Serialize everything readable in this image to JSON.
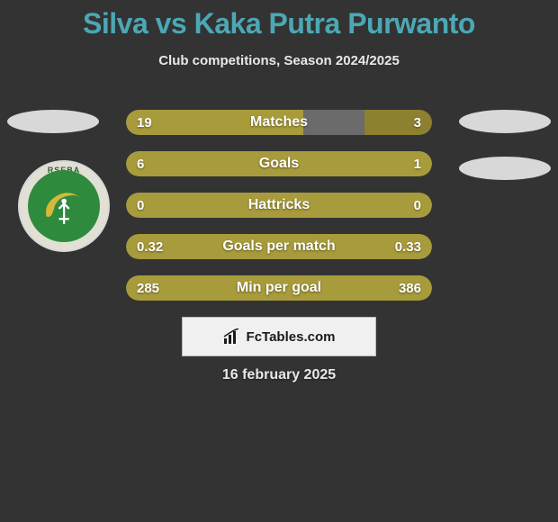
{
  "title": "Silva vs Kaka Putra Purwanto",
  "subtitle": "Club competitions, Season 2024/2025",
  "colors": {
    "accent_teal": "#4ba8b5",
    "bar_olive": "#a89b3b",
    "bar_olive_dark": "#8d8130",
    "bar_track": "#6b6b6b",
    "background": "#333333",
    "text_light": "#e8e8e8"
  },
  "bars": [
    {
      "label": "Matches",
      "left_val": "19",
      "right_val": "3",
      "left_pct": 58,
      "right_pct": 22
    },
    {
      "label": "Goals",
      "left_val": "6",
      "right_val": "1",
      "left_pct": 100,
      "right_pct": 0
    },
    {
      "label": "Hattricks",
      "left_val": "0",
      "right_val": "0",
      "left_pct": 100,
      "right_pct": 0
    },
    {
      "label": "Goals per match",
      "left_val": "0.32",
      "right_val": "0.33",
      "left_pct": 100,
      "right_pct": 0
    },
    {
      "label": "Min per goal",
      "left_val": "285",
      "right_val": "386",
      "left_pct": 100,
      "right_pct": 0
    }
  ],
  "attribution": "FcTables.com",
  "date": "16 february 2025",
  "crest_text": "RSEBA"
}
